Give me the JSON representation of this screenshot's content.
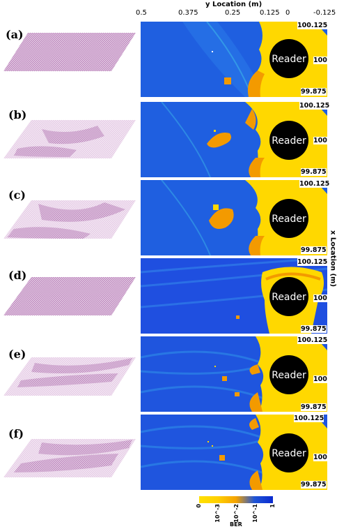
{
  "header": {
    "y_axis_title": "y Location (m)",
    "y_ticks": [
      "0.5",
      "0.375",
      "0.25",
      "0.125",
      "0",
      "-0.125"
    ]
  },
  "x_axis_title": "x Location (m)",
  "x_ticks": [
    "100.125",
    "100",
    "99.875"
  ],
  "reader_label": "Reader",
  "panels": [
    {
      "label": "(a)"
    },
    {
      "label": "(b)"
    },
    {
      "label": "(c)"
    },
    {
      "label": "(d)"
    },
    {
      "label": "(e)"
    },
    {
      "label": "(f)"
    }
  ],
  "colorbar": {
    "title": "BER",
    "ticks": [
      "0",
      "10^-3",
      "10^-2",
      "10^-1",
      "1"
    ],
    "colors": [
      "#ffe000",
      "#f5a300",
      "#1f55d6",
      "#0a2ad0"
    ]
  },
  "colors": {
    "field_blue": "#1f5fe0",
    "field_yellow": "#ffd800",
    "field_orange": "#f39a00",
    "reader_black": "#000000",
    "surface_pink": "#c896c8"
  }
}
